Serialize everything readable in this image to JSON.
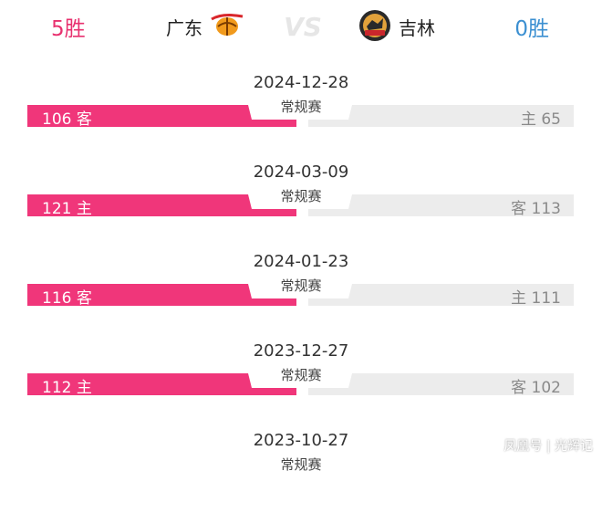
{
  "header": {
    "left_wins": "5胜",
    "left_team": "广东",
    "right_team": "吉林",
    "right_wins": "0胜",
    "vs_text": "VS"
  },
  "games": [
    {
      "date": "2024-12-28",
      "type": "常规赛",
      "left_score": "106",
      "left_side": "客",
      "right_side": "主",
      "right_score": "65"
    },
    {
      "date": "2024-03-09",
      "type": "常规赛",
      "left_score": "121",
      "left_side": "主",
      "right_side": "客",
      "right_score": "113"
    },
    {
      "date": "2024-01-23",
      "type": "常规赛",
      "left_score": "116",
      "left_side": "客",
      "right_side": "主",
      "right_score": "111"
    },
    {
      "date": "2023-12-27",
      "type": "常规赛",
      "left_score": "112",
      "left_side": "主",
      "right_side": "客",
      "right_score": "102"
    },
    {
      "date": "2023-10-27",
      "type": "常规赛"
    }
  ],
  "watermark": "凤凰号 | 光辉记",
  "colors": {
    "winner_bar": "#f0367a",
    "loser_bar": "#ececec",
    "left_wins": "#e8316f",
    "right_wins": "#3b8fd1"
  }
}
